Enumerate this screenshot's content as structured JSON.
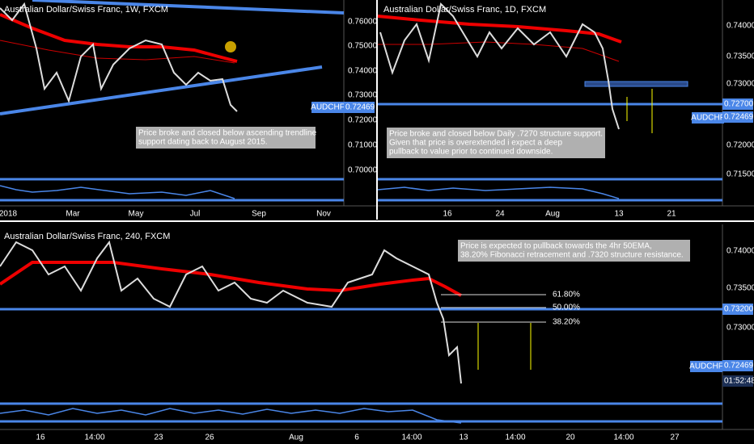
{
  "panels": [
    {
      "title": "Australian Dollar/Swiss Franc, 1W, FXCM",
      "price_labels": [
        "0.76000",
        "0.75000",
        "0.74000",
        "0.73000",
        "0.72000",
        "0.71000",
        "0.70000"
      ],
      "symbol": "AUDCHF",
      "last_price": "0.72469",
      "time_labels": [
        "2018",
        "Mar",
        "May",
        "Jul",
        "Sep",
        "Nov"
      ],
      "note": [
        "Price broke and closed below ascending trendline",
        "support dating back to August 2015."
      ]
    },
    {
      "title": "Australian Dollar/Swiss Franc, 1D, FXCM",
      "price_labels": [
        "0.74000",
        "0.73500",
        "0.73000",
        "0.72000",
        "0.71500"
      ],
      "level_label": "0.72700",
      "symbol": "AUDCHF",
      "last_price": "0.72469",
      "time_labels": [
        "16",
        "24",
        "Aug",
        "13",
        "21"
      ],
      "note": [
        "Price broke and closed below Daily .7270 structure support.",
        "Given that price is overextended i expect a deep",
        "pullback to value prior to continued downside."
      ]
    },
    {
      "title": "Australian Dollar/Swiss Franc, 240, FXCM",
      "price_labels": [
        "0.74000",
        "0.73500",
        "0.73000"
      ],
      "level_label": "0.73200",
      "symbol": "AUDCHF",
      "last_price": "0.72469",
      "countdown": "01:52:48",
      "fib_labels": [
        "61.80%",
        "50.00%",
        "38.20%"
      ],
      "time_labels": [
        "16",
        "14:00",
        "23",
        "26",
        "Aug",
        "6",
        "14:00",
        "13",
        "14:00",
        "20",
        "14:00",
        "27"
      ],
      "note": [
        "Price is expected to pullback towards the 4hr 50EMA,",
        "38.20% Fibonacci retracement and .7320 structure resistance."
      ]
    }
  ]
}
